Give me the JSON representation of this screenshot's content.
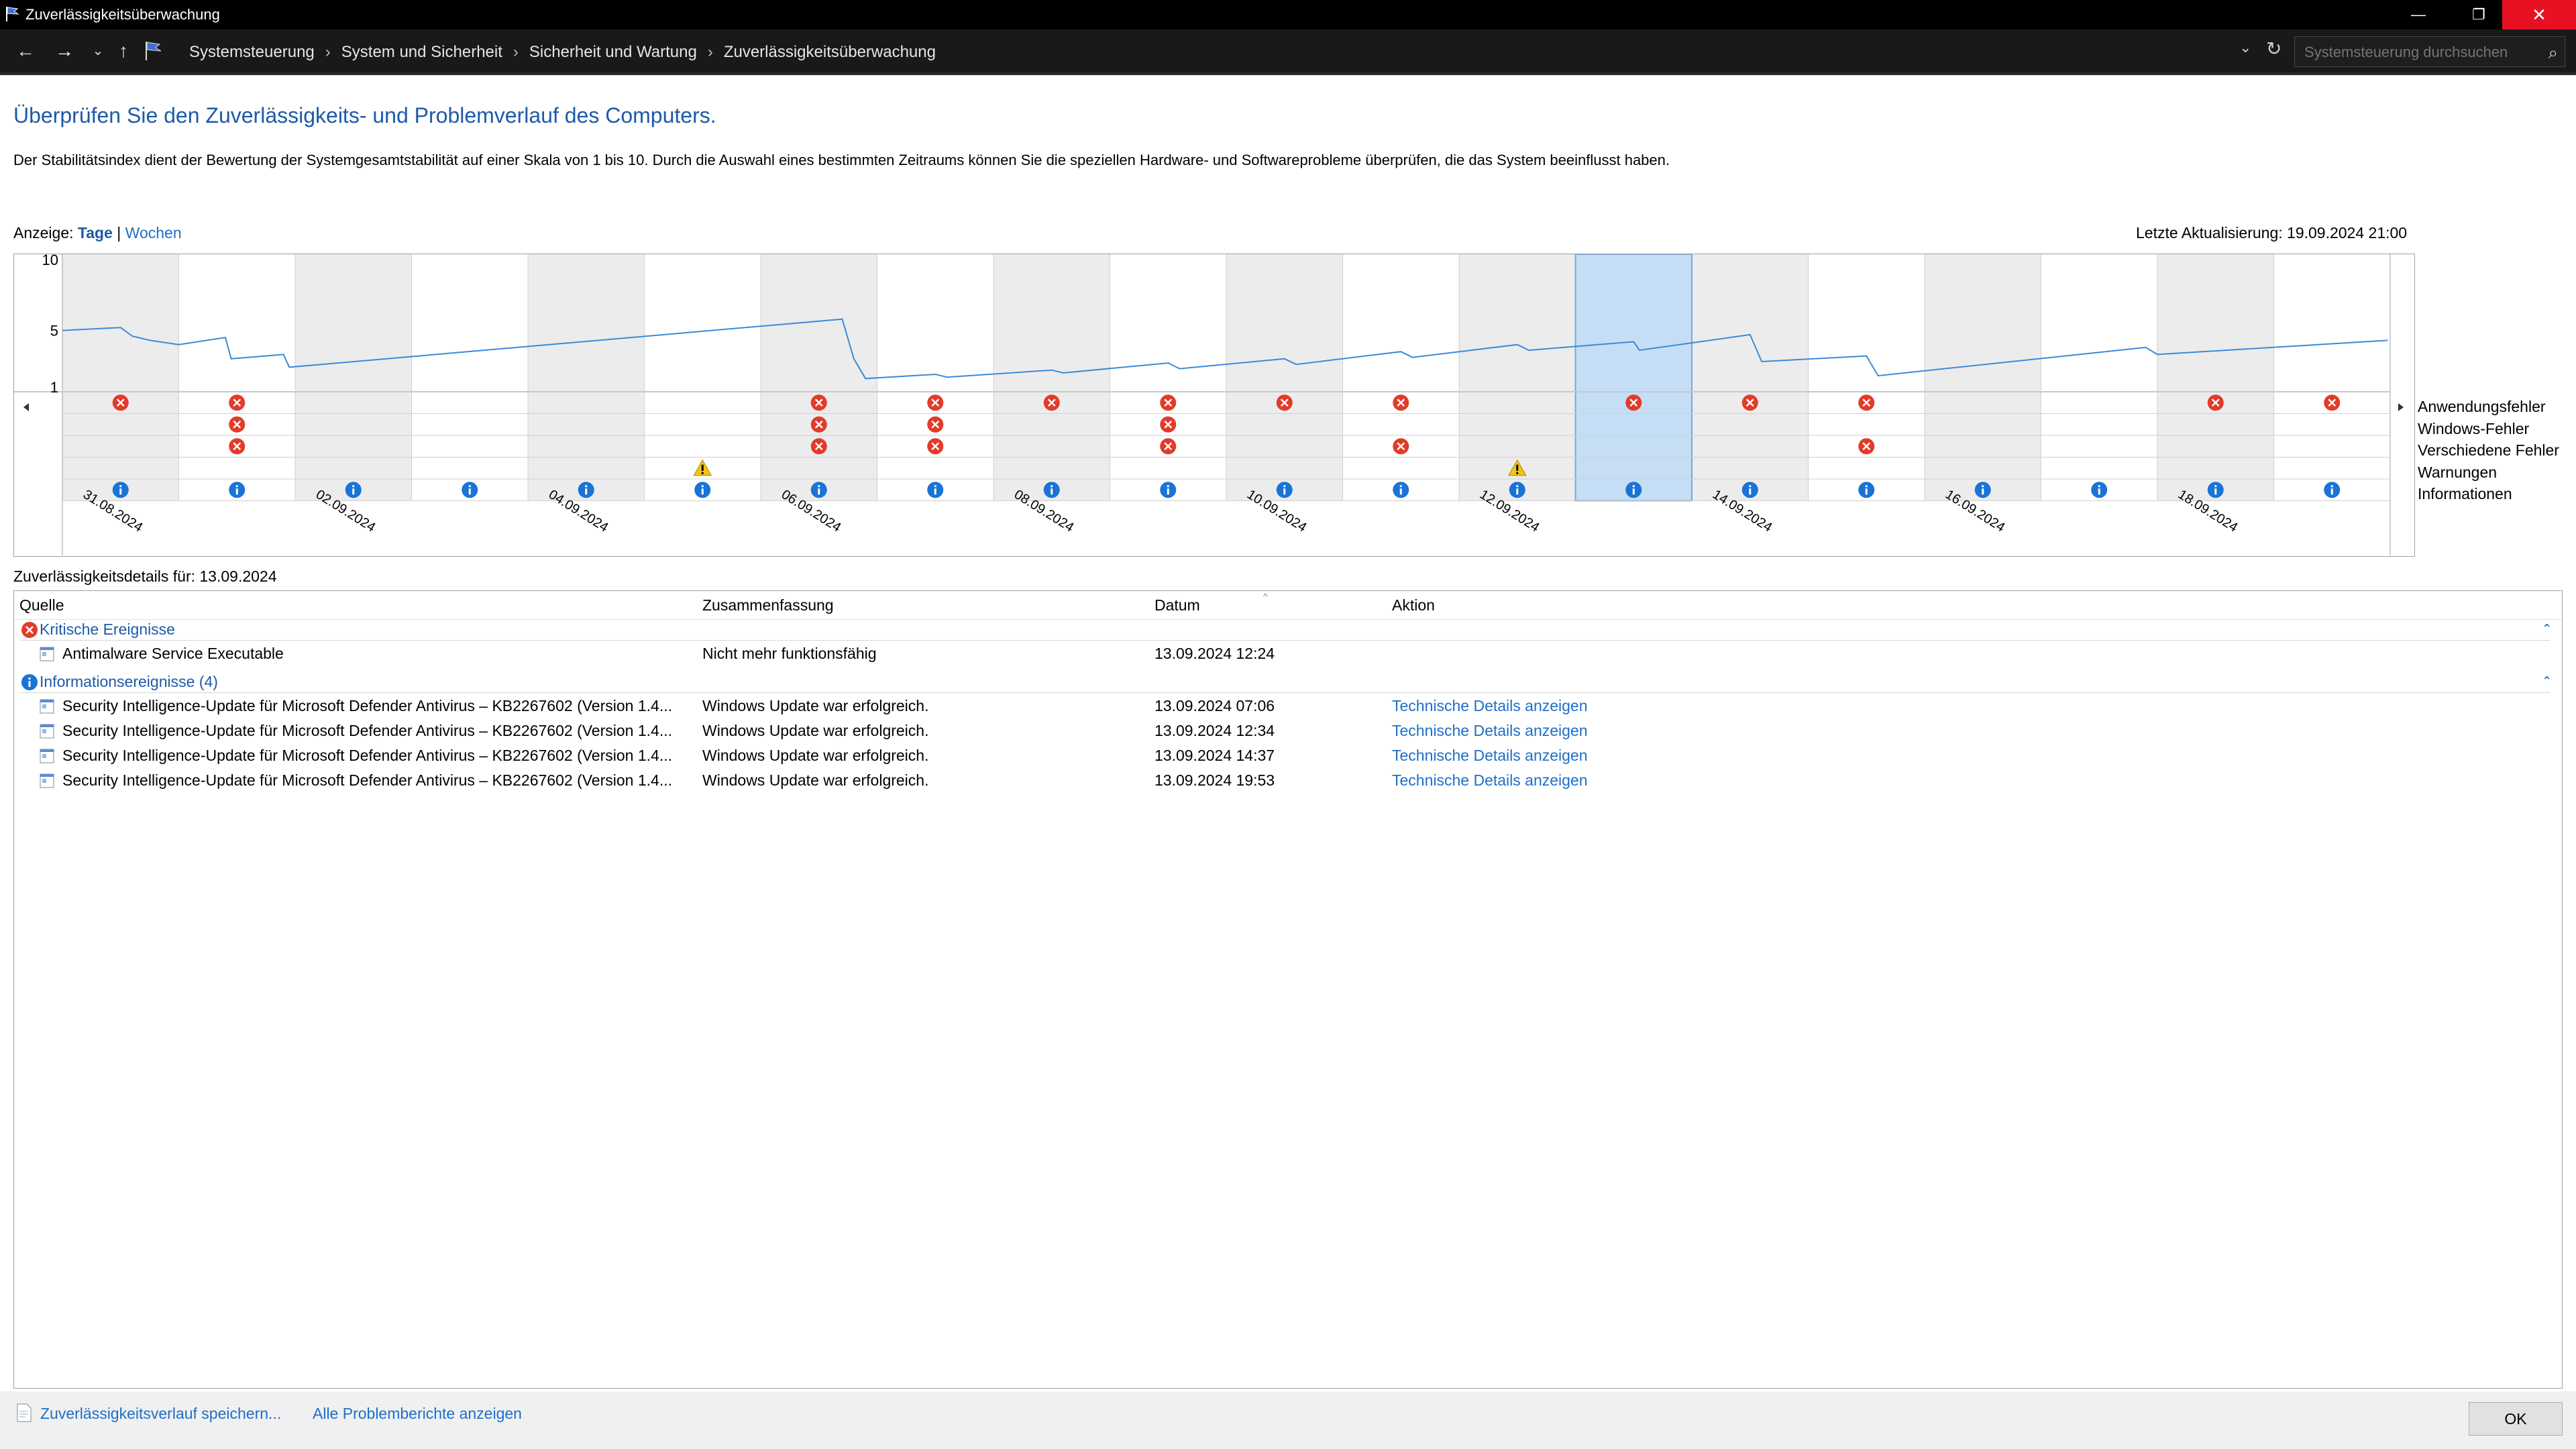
{
  "window": {
    "title": "Zuverlässigkeitsüberwachung",
    "minimize_glyph": "—",
    "maximize_glyph": "❐",
    "close_glyph": "✕"
  },
  "address_bar": {
    "breadcrumbs": [
      "Systemsteuerung",
      "System und Sicherheit",
      "Sicherheit und Wartung",
      "Zuverlässigkeitsüberwachung"
    ],
    "search_placeholder": "Systemsteuerung durchsuchen"
  },
  "page": {
    "heading": "Überprüfen Sie den Zuverlässigkeits- und Problemverlauf des Computers.",
    "description": "Der Stabilitätsindex dient der Bewertung der Systemgesamtstabilität auf einer Skala von 1 bis 10. Durch die Auswahl eines bestimmten Zeitraums können Sie die speziellen Hardware- und Softwareprobleme überprüfen, die das System beeinflusst haben.",
    "view_label": "Anzeige:",
    "view_days": "Tage",
    "view_separator": "|",
    "view_weeks": "Wochen",
    "last_update": "Letzte Aktualisierung: 19.09.2024 21:00"
  },
  "chart_data": {
    "type": "line",
    "y_ticks": [
      "10",
      "5",
      "1"
    ],
    "ylim": [
      1,
      10
    ],
    "columns": 20,
    "selected_column": 13,
    "x_tick_labels": [
      {
        "col": 0,
        "label": "31.08.2024"
      },
      {
        "col": 2,
        "label": "02.09.2024"
      },
      {
        "col": 4,
        "label": "04.09.2024"
      },
      {
        "col": 6,
        "label": "06.09.2024"
      },
      {
        "col": 8,
        "label": "08.09.2024"
      },
      {
        "col": 10,
        "label": "10.09.2024"
      },
      {
        "col": 12,
        "label": "12.09.2024"
      },
      {
        "col": 14,
        "label": "14.09.2024"
      },
      {
        "col": 16,
        "label": "16.09.2024"
      },
      {
        "col": 18,
        "label": "18.09.2024"
      }
    ],
    "stability_index": [
      [
        0.0,
        5.0
      ],
      [
        0.5,
        5.2
      ],
      [
        0.6,
        4.6
      ],
      [
        0.75,
        4.3
      ],
      [
        1.0,
        4.0
      ],
      [
        1.4,
        4.5
      ],
      [
        1.45,
        3.0
      ],
      [
        1.9,
        3.3
      ],
      [
        1.95,
        2.4
      ],
      [
        6.7,
        5.8
      ],
      [
        6.8,
        3.0
      ],
      [
        6.9,
        1.6
      ],
      [
        7.5,
        1.9
      ],
      [
        7.6,
        1.7
      ],
      [
        8.5,
        2.2
      ],
      [
        8.6,
        2.0
      ],
      [
        9.5,
        2.7
      ],
      [
        9.6,
        2.3
      ],
      [
        10.5,
        3.0
      ],
      [
        10.6,
        2.6
      ],
      [
        11.5,
        3.5
      ],
      [
        11.6,
        3.1
      ],
      [
        12.5,
        4.0
      ],
      [
        12.6,
        3.6
      ],
      [
        13.5,
        4.2
      ],
      [
        13.55,
        3.6
      ],
      [
        14.5,
        4.7
      ],
      [
        14.6,
        2.8
      ],
      [
        15.5,
        3.2
      ],
      [
        15.6,
        1.8
      ],
      [
        17.9,
        3.8
      ],
      [
        18.0,
        3.3
      ],
      [
        19.98,
        4.3
      ]
    ],
    "rows": [
      "Anwendungsfehler",
      "Windows-Fehler",
      "Verschiedene Fehler",
      "Warnungen",
      "Informationen"
    ],
    "events": {
      "Anwendungsfehler": [
        0,
        1,
        6,
        7,
        8,
        9,
        10,
        11,
        13,
        14,
        15,
        18,
        19
      ],
      "Windows-Fehler": [
        1,
        6,
        7,
        9
      ],
      "Verschiedene Fehler": [
        1,
        6,
        7,
        9,
        11,
        15
      ],
      "Warnungen": [
        5,
        12
      ],
      "Informationen": [
        0,
        1,
        2,
        3,
        4,
        5,
        6,
        7,
        8,
        9,
        10,
        11,
        12,
        13,
        14,
        15,
        16,
        17,
        18,
        19
      ]
    },
    "colors": {
      "line": "#3c8ad8",
      "selected": "#c5def5",
      "shaded": "#ececec",
      "error": "#e23b2a",
      "info": "#1a73d6",
      "warning": "#f2c318"
    }
  },
  "details": {
    "label": "Zuverlässigkeitsdetails für: 13.09.2024",
    "columns": [
      "Quelle",
      "Zusammenfassung",
      "Datum",
      "Aktion"
    ],
    "groups": [
      {
        "title": "Kritische Ereignisse",
        "icon": "error-icon",
        "rows": [
          {
            "source": "Antimalware Service Executable",
            "summary": "Nicht mehr funktionsfähig",
            "date": "13.09.2024 12:24",
            "action": ""
          }
        ]
      },
      {
        "title": "Informationsereignisse (4)",
        "icon": "info-icon",
        "rows": [
          {
            "source": "Security Intelligence-Update für Microsoft Defender Antivirus – KB2267602 (Version 1.4...",
            "summary": "Windows Update war erfolgreich.",
            "date": "13.09.2024 07:06",
            "action": "Technische Details anzeigen"
          },
          {
            "source": "Security Intelligence-Update für Microsoft Defender Antivirus – KB2267602 (Version 1.4...",
            "summary": "Windows Update war erfolgreich.",
            "date": "13.09.2024 12:34",
            "action": "Technische Details anzeigen"
          },
          {
            "source": "Security Intelligence-Update für Microsoft Defender Antivirus – KB2267602 (Version 1.4...",
            "summary": "Windows Update war erfolgreich.",
            "date": "13.09.2024 14:37",
            "action": "Technische Details anzeigen"
          },
          {
            "source": "Security Intelligence-Update für Microsoft Defender Antivirus – KB2267602 (Version 1.4...",
            "summary": "Windows Update war erfolgreich.",
            "date": "13.09.2024 19:53",
            "action": "Technische Details anzeigen"
          }
        ]
      }
    ]
  },
  "footer": {
    "save_link": "Zuverlässigkeitsverlauf speichern...",
    "reports_link": "Alle Problemberichte anzeigen",
    "ok_label": "OK"
  }
}
